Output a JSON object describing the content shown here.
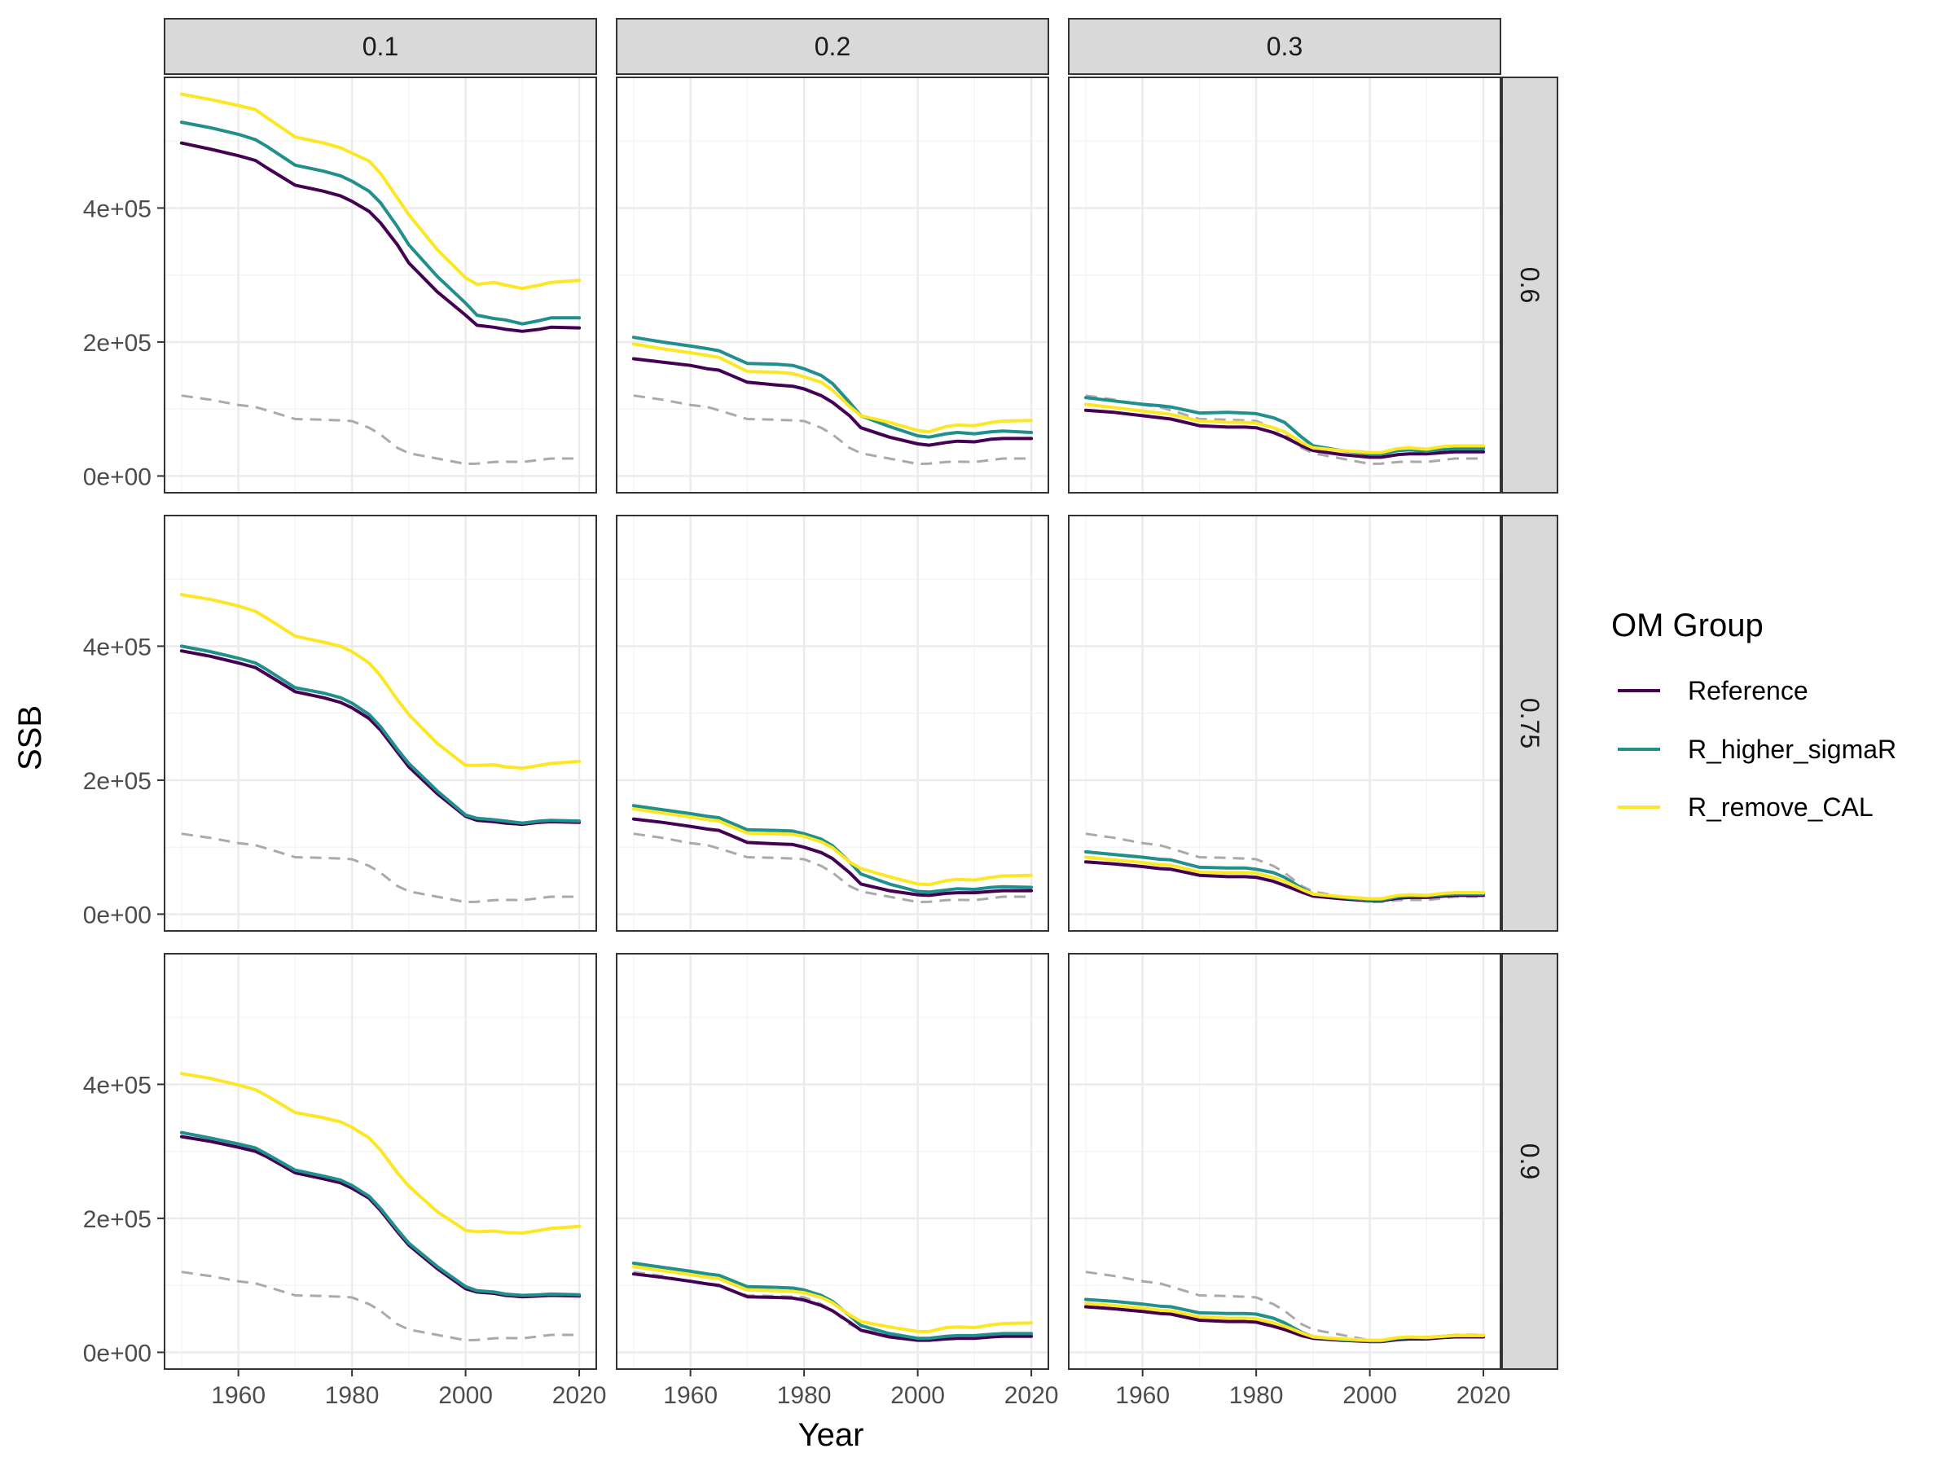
{
  "chart_data": {
    "type": "line",
    "facet_cols": {
      "values": [
        "0.1",
        "0.2",
        "0.3"
      ]
    },
    "facet_rows": {
      "values": [
        "0.6",
        "0.75",
        "0.9"
      ]
    },
    "xlabel": "Year",
    "ylabel": "SSB",
    "xlim": [
      1947,
      2023
    ],
    "ylim": [
      -25000,
      595000
    ],
    "x_ticks": [
      1960,
      1980,
      2000,
      2020
    ],
    "x_tick_labels": [
      "1960",
      "1980",
      "2000",
      "2020"
    ],
    "y_ticks": [
      0,
      200000,
      400000
    ],
    "y_tick_labels": [
      "0e+00",
      "2e+05",
      "4e+05"
    ],
    "grid": true,
    "legend": {
      "title": "OM Group",
      "position": "right",
      "entries": [
        "Reference",
        "R_higher_sigmaR",
        "R_remove_CAL"
      ]
    },
    "colors": {
      "Reference": "#440154",
      "R_higher_sigmaR": "#21908C",
      "R_remove_CAL": "#FDE725",
      "dashed": "#aaaaaa"
    },
    "years": [
      1950,
      1955,
      1960,
      1963,
      1965,
      1970,
      1975,
      1978,
      1980,
      1983,
      1985,
      1988,
      1990,
      1995,
      2000,
      2002,
      2005,
      2007,
      2010,
      2013,
      2015,
      2020
    ],
    "dashed_line": [
      120000,
      114000,
      106000,
      103000,
      98000,
      85000,
      84000,
      83000,
      82000,
      72000,
      62000,
      42000,
      34000,
      26000,
      18000,
      18500,
      21000,
      21500,
      21000,
      24000,
      26000,
      26000
    ],
    "panels": [
      {
        "col": "0.1",
        "row": "0.6",
        "series": [
          {
            "name": "Reference",
            "values": [
              497000,
              488000,
              478000,
              471000,
              460000,
              434000,
              425000,
              418000,
              410000,
              395000,
              378000,
              345000,
              318000,
              275000,
              240000,
              225000,
              222000,
              219000,
              216000,
              219000,
              222000,
              221000
            ]
          },
          {
            "name": "R_higher_sigmaR",
            "values": [
              528000,
              520000,
              510000,
              502000,
              492000,
              464000,
              455000,
              448000,
              440000,
              425000,
              408000,
              372000,
              345000,
              298000,
              258000,
              240000,
              235000,
              233000,
              227000,
              232000,
              236000,
              236000
            ]
          },
          {
            "name": "R_remove_CAL",
            "values": [
              570000,
              562000,
              553000,
              547000,
              535000,
              506000,
              497000,
              490000,
              482000,
              470000,
              452000,
              415000,
              390000,
              338000,
              296000,
              286000,
              289000,
              285000,
              280000,
              285000,
              289000,
              292000
            ]
          }
        ]
      },
      {
        "col": "0.2",
        "row": "0.6",
        "series": [
          {
            "name": "Reference",
            "values": [
              175000,
              170000,
              165000,
              160000,
              158000,
              140000,
              136000,
              134000,
              130000,
              120000,
              110000,
              90000,
              72000,
              58000,
              48000,
              46000,
              50000,
              52000,
              51000,
              55000,
              56000,
              56000
            ]
          },
          {
            "name": "R_higher_sigmaR",
            "values": [
              207000,
              200000,
              194000,
              190000,
              187000,
              168000,
              167000,
              165000,
              160000,
              150000,
              138000,
              110000,
              90000,
              74000,
              60000,
              58000,
              63000,
              65000,
              63000,
              66000,
              67000,
              65000
            ]
          },
          {
            "name": "R_remove_CAL",
            "values": [
              197000,
              190000,
              184000,
              180000,
              177000,
              156000,
              155000,
              153000,
              148000,
              140000,
              128000,
              104000,
              90000,
              80000,
              68000,
              66000,
              74000,
              76000,
              75000,
              80000,
              82000,
              83000
            ]
          }
        ]
      },
      {
        "col": "0.3",
        "row": "0.6",
        "series": [
          {
            "name": "Reference",
            "values": [
              98000,
              95000,
              90000,
              87000,
              85000,
              75000,
              73000,
              73000,
              72000,
              65000,
              58000,
              45000,
              38000,
              32000,
              28000,
              28000,
              32000,
              33000,
              33000,
              35000,
              36000,
              36000
            ]
          },
          {
            "name": "R_higher_sigmaR",
            "values": [
              117000,
              112000,
              107000,
              105000,
              103000,
              94000,
              95000,
              94000,
              93000,
              87000,
              80000,
              58000,
              45000,
              38000,
              33000,
              33000,
              38000,
              39000,
              37000,
              40000,
              41000,
              41000
            ]
          },
          {
            "name": "R_remove_CAL",
            "values": [
              107000,
              102000,
              97000,
              94000,
              92000,
              82000,
              80000,
              80000,
              79000,
              72000,
              66000,
              50000,
              42000,
              38000,
              35000,
              35000,
              41000,
              42000,
              40000,
              44000,
              45000,
              45000
            ]
          }
        ]
      },
      {
        "col": "0.1",
        "row": "0.75",
        "series": [
          {
            "name": "Reference",
            "values": [
              393000,
              385000,
              375000,
              368000,
              358000,
              332000,
              323000,
              316000,
              308000,
              292000,
              275000,
              242000,
              220000,
              180000,
              146000,
              140000,
              138000,
              136000,
              134000,
              137000,
              138000,
              137000
            ]
          },
          {
            "name": "R_higher_sigmaR",
            "values": [
              400000,
              392000,
              382000,
              375000,
              365000,
              338000,
              330000,
              323000,
              315000,
              298000,
              280000,
              246000,
              225000,
              184000,
              148000,
              143000,
              141000,
              139000,
              136000,
              139000,
              140000,
              139000
            ]
          },
          {
            "name": "R_remove_CAL",
            "values": [
              477000,
              470000,
              460000,
              452000,
              442000,
              415000,
              406000,
              400000,
              392000,
              375000,
              356000,
              320000,
              298000,
              255000,
              222000,
              222000,
              223000,
              220000,
              218000,
              222000,
              225000,
              228000
            ]
          }
        ]
      },
      {
        "col": "0.2",
        "row": "0.75",
        "series": [
          {
            "name": "Reference",
            "values": [
              142000,
              137000,
              131000,
              127000,
              125000,
              107000,
              105000,
              104000,
              100000,
              92000,
              83000,
              62000,
              45000,
              35000,
              29000,
              28000,
              31000,
              32000,
              32000,
              34000,
              35000,
              35000
            ]
          },
          {
            "name": "R_higher_sigmaR",
            "values": [
              162000,
              156000,
              150000,
              146000,
              144000,
              126000,
              125000,
              124000,
              120000,
              112000,
              102000,
              78000,
              60000,
              45000,
              34000,
              33000,
              36000,
              38000,
              37000,
              40000,
              41000,
              40000
            ]
          },
          {
            "name": "R_remove_CAL",
            "values": [
              157000,
              151000,
              145000,
              141000,
              139000,
              121000,
              120000,
              119000,
              116000,
              108000,
              99000,
              78000,
              68000,
              56000,
              45000,
              44000,
              50000,
              52000,
              51000,
              55000,
              57000,
              58000
            ]
          }
        ]
      },
      {
        "col": "0.3",
        "row": "0.75",
        "series": [
          {
            "name": "Reference",
            "values": [
              78000,
              75000,
              71000,
              68000,
              67000,
              58000,
              56000,
              56000,
              55000,
              49000,
              43000,
              33000,
              27000,
              23000,
              20000,
              20000,
              24000,
              25000,
              25000,
              27000,
              28000,
              28000
            ]
          },
          {
            "name": "R_higher_sigmaR",
            "values": [
              93000,
              89000,
              85000,
              82000,
              81000,
              70000,
              69000,
              69000,
              67000,
              62000,
              55000,
              39000,
              30000,
              25000,
              21000,
              21000,
              26000,
              27000,
              27000,
              29000,
              30000,
              30000
            ]
          },
          {
            "name": "R_remove_CAL",
            "values": [
              85000,
              81000,
              77000,
              74000,
              73000,
              63000,
              62000,
              62000,
              61000,
              55000,
              49000,
              37000,
              30000,
              26000,
              23000,
              23000,
              28000,
              29000,
              28000,
              31000,
              32000,
              32000
            ]
          }
        ]
      },
      {
        "col": "0.1",
        "row": "0.9",
        "series": [
          {
            "name": "Reference",
            "values": [
              322000,
              315000,
              306000,
              300000,
              292000,
              268000,
              259000,
              253000,
              245000,
              230000,
              212000,
              180000,
              160000,
              125000,
              95000,
              90000,
              88000,
              85000,
              83000,
              84000,
              85000,
              84000
            ]
          },
          {
            "name": "R_higher_sigmaR",
            "values": [
              328000,
              320000,
              311000,
              305000,
              296000,
              272000,
              263000,
              257000,
              249000,
              233000,
              215000,
              183000,
              163000,
              128000,
              98000,
              92000,
              90000,
              87000,
              85000,
              86000,
              87000,
              86000
            ]
          },
          {
            "name": "R_remove_CAL",
            "values": [
              416000,
              409000,
              399000,
              392000,
              383000,
              358000,
              350000,
              344000,
              336000,
              320000,
              302000,
              268000,
              248000,
              210000,
              182000,
              180000,
              181000,
              179000,
              178000,
              182000,
              185000,
              188000
            ]
          }
        ]
      },
      {
        "col": "0.2",
        "row": "0.9",
        "series": [
          {
            "name": "Reference",
            "values": [
              117000,
              112000,
              106000,
              102000,
              100000,
              83000,
              82000,
              81000,
              78000,
              70000,
              62000,
              45000,
              33000,
              23000,
              18000,
              18000,
              20000,
              21000,
              21000,
              23000,
              24000,
              24000
            ]
          },
          {
            "name": "R_higher_sigmaR",
            "values": [
              133000,
              127000,
              121000,
              117000,
              115000,
              98000,
              97000,
              96000,
              93000,
              85000,
              76000,
              55000,
              40000,
              28000,
              21000,
              21000,
              24000,
              25000,
              25000,
              27000,
              28000,
              28000
            ]
          },
          {
            "name": "R_remove_CAL",
            "values": [
              128000,
              122000,
              116000,
              112000,
              110000,
              93000,
              92000,
              91000,
              89000,
              82000,
              74000,
              56000,
              46000,
              38000,
              31000,
              31000,
              37000,
              38000,
              37000,
              41000,
              43000,
              44000
            ]
          }
        ]
      },
      {
        "col": "0.3",
        "row": "0.9",
        "series": [
          {
            "name": "Reference",
            "values": [
              68000,
              65000,
              61000,
              58000,
              57000,
              48000,
              46000,
              46000,
              45000,
              39000,
              34000,
              25000,
              21000,
              18000,
              16000,
              16000,
              19000,
              20000,
              20000,
              22000,
              23000,
              23000
            ]
          },
          {
            "name": "R_higher_sigmaR",
            "values": [
              79000,
              76000,
              72000,
              69000,
              68000,
              59000,
              58000,
              58000,
              57000,
              51000,
              44000,
              30000,
              23000,
              19000,
              17000,
              17000,
              21000,
              22000,
              22000,
              24000,
              25000,
              25000
            ]
          },
          {
            "name": "R_remove_CAL",
            "values": [
              73000,
              70000,
              66000,
              63000,
              62000,
              53000,
              51000,
              51000,
              50000,
              44000,
              39000,
              29000,
              23000,
              20000,
              18000,
              18000,
              22000,
              23000,
              22000,
              24000,
              25000,
              25000
            ]
          }
        ]
      }
    ]
  }
}
